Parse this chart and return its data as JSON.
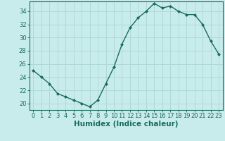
{
  "x": [
    0,
    1,
    2,
    3,
    4,
    5,
    6,
    7,
    8,
    9,
    10,
    11,
    12,
    13,
    14,
    15,
    16,
    17,
    18,
    19,
    20,
    21,
    22,
    23
  ],
  "y": [
    25.0,
    24.0,
    23.0,
    21.5,
    21.0,
    20.5,
    20.0,
    19.5,
    20.5,
    23.0,
    25.5,
    29.0,
    31.5,
    33.0,
    34.0,
    35.2,
    34.5,
    34.8,
    34.0,
    33.5,
    33.5,
    32.0,
    29.5,
    27.5
  ],
  "line_color": "#1a6b5a",
  "marker": "D",
  "marker_size": 2.0,
  "bg_color": "#c8ecec",
  "grid_color": "#b0d8d8",
  "xlabel": "Humidex (Indice chaleur)",
  "ylim": [
    19.0,
    35.5
  ],
  "xlim": [
    -0.5,
    23.5
  ],
  "yticks": [
    20,
    22,
    24,
    26,
    28,
    30,
    32,
    34
  ],
  "xticks": [
    0,
    1,
    2,
    3,
    4,
    5,
    6,
    7,
    8,
    9,
    10,
    11,
    12,
    13,
    14,
    15,
    16,
    17,
    18,
    19,
    20,
    21,
    22,
    23
  ],
  "tick_color": "#1a6b5a",
  "axis_color": "#1a6b5a",
  "xlabel_fontsize": 7.5,
  "tick_fontsize": 6.0,
  "linewidth": 1.0
}
